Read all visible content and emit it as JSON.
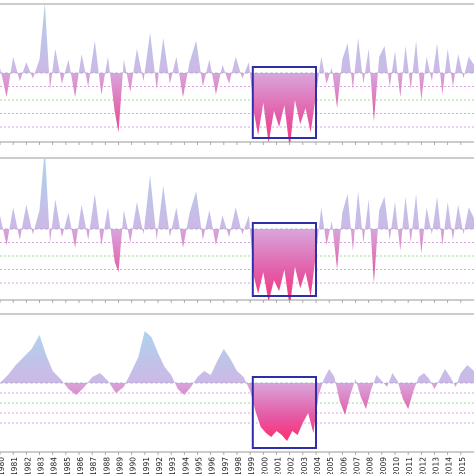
{
  "chart_data": [
    {
      "type": "area",
      "title": "",
      "xlabel": "",
      "ylabel": "",
      "x_range": [
        1980,
        2016
      ],
      "ylim": [
        -3,
        3
      ],
      "zero_line_color": "#9aa6cc",
      "threshold_lines": [
        {
          "value": -0.5,
          "color": "#c98ad8"
        },
        {
          "value": -1.0,
          "color": "#7fd46b"
        },
        {
          "value": -1.5,
          "color": "#d88ac8"
        },
        {
          "value": -2.0,
          "color": "#c98ad8"
        }
      ],
      "highlight_box": {
        "x": [
          1999.2,
          2004.0
        ],
        "color": "#2e2fa8"
      },
      "series": [
        {
          "x": [
            1980.0,
            1980.5,
            1981.0,
            1981.5,
            1982.0,
            1982.5,
            1983.0,
            1983.4,
            1983.8,
            1984.2,
            1984.7,
            1985.2,
            1985.7,
            1986.2,
            1986.7,
            1987.2,
            1987.7,
            1988.2,
            1988.7,
            1989.0,
            1989.4,
            1989.9,
            1990.4,
            1990.9,
            1991.4,
            1991.9,
            1992.4,
            1992.9,
            1993.4,
            1993.9,
            1994.4,
            1994.9,
            1995.4,
            1995.9,
            1996.4,
            1996.9,
            1997.4,
            1997.9,
            1998.4,
            1998.9,
            1999.3,
            1999.6,
            2000.0,
            2000.4,
            2000.8,
            2001.2,
            2001.6,
            2002.0,
            2002.4,
            2002.8,
            2003.2,
            2003.6,
            2004.0,
            2004.4,
            2004.8,
            2005.2,
            2005.6,
            2006.0,
            2006.4,
            2006.8,
            2007.2,
            2007.6,
            2008.0,
            2008.4,
            2008.8,
            2009.2,
            2009.6,
            2010.0,
            2010.4,
            2010.8,
            2011.2,
            2011.6,
            2012.0,
            2012.4,
            2012.8,
            2013.2,
            2013.6,
            2014.0,
            2014.4,
            2014.8,
            2015.2,
            2015.6,
            2016.0
          ],
          "y": [
            0.2,
            -0.9,
            0.6,
            -0.3,
            0.4,
            -0.2,
            0.5,
            2.6,
            -0.6,
            0.9,
            -0.4,
            0.5,
            -0.9,
            0.7,
            -0.5,
            1.2,
            -0.8,
            0.6,
            -1.4,
            -2.2,
            0.5,
            -0.7,
            0.9,
            -0.3,
            1.5,
            -0.6,
            1.3,
            -0.4,
            0.6,
            -0.9,
            0.4,
            1.2,
            -0.5,
            0.5,
            -0.8,
            0.3,
            -0.4,
            0.6,
            -0.2,
            0.4,
            -1.5,
            -2.3,
            -1.1,
            -2.6,
            -1.4,
            -2.0,
            -1.2,
            -2.8,
            -1.0,
            -1.9,
            -1.3,
            -2.2,
            -0.8,
            0.6,
            -0.4,
            0.2,
            -1.3,
            0.5,
            1.1,
            -0.6,
            1.3,
            -0.4,
            0.9,
            -1.8,
            0.6,
            1.0,
            -0.5,
            0.8,
            -0.9,
            1.0,
            -0.6,
            1.2,
            -1.0,
            0.6,
            -0.3,
            1.1,
            -0.8,
            0.9,
            -0.5,
            0.7,
            -0.2,
            0.6,
            0.3
          ]
        }
      ]
    },
    {
      "type": "area",
      "title": "",
      "xlabel": "",
      "ylabel": "",
      "x_range": [
        1980,
        2016
      ],
      "ylim": [
        -3,
        3
      ],
      "zero_line_color": "#9aa6cc",
      "threshold_lines": [
        {
          "value": -0.5,
          "color": "#c98ad8"
        },
        {
          "value": -1.0,
          "color": "#7fd46b"
        },
        {
          "value": -1.5,
          "color": "#d88ac8"
        },
        {
          "value": -2.0,
          "color": "#c98ad8"
        }
      ],
      "highlight_box": {
        "x": [
          1999.2,
          2004.0
        ],
        "color": "#2e2fa8"
      },
      "series": [
        {
          "x": [
            1980.0,
            1980.5,
            1981.0,
            1981.5,
            1982.0,
            1982.5,
            1983.0,
            1983.4,
            1983.8,
            1984.2,
            1984.7,
            1985.2,
            1985.7,
            1986.2,
            1986.7,
            1987.2,
            1987.7,
            1988.2,
            1988.7,
            1989.0,
            1989.4,
            1989.9,
            1990.4,
            1990.9,
            1991.4,
            1991.9,
            1992.4,
            1992.9,
            1993.4,
            1993.9,
            1994.4,
            1994.9,
            1995.4,
            1995.9,
            1996.4,
            1996.9,
            1997.4,
            1997.9,
            1998.4,
            1998.9,
            1999.3,
            1999.6,
            2000.0,
            2000.4,
            2000.8,
            2001.2,
            2001.6,
            2002.0,
            2002.4,
            2002.8,
            2003.2,
            2003.6,
            2004.0,
            2004.4,
            2004.8,
            2005.2,
            2005.6,
            2006.0,
            2006.4,
            2006.8,
            2007.2,
            2007.6,
            2008.0,
            2008.4,
            2008.8,
            2009.2,
            2009.6,
            2010.0,
            2010.4,
            2010.8,
            2011.2,
            2011.6,
            2012.0,
            2012.4,
            2012.8,
            2013.2,
            2013.6,
            2014.0,
            2014.4,
            2014.8,
            2015.2,
            2015.6,
            2016.0
          ],
          "y": [
            0.5,
            -0.6,
            0.8,
            -0.4,
            0.9,
            -0.2,
            0.7,
            3.0,
            -0.5,
            1.1,
            -0.3,
            0.6,
            -0.7,
            0.9,
            -0.4,
            1.3,
            -0.6,
            0.8,
            -1.2,
            -1.6,
            0.7,
            -0.5,
            1.0,
            -0.2,
            2.0,
            -0.4,
            1.6,
            -0.3,
            0.8,
            -0.7,
            0.6,
            1.4,
            -0.4,
            0.7,
            -0.6,
            0.5,
            -0.3,
            0.8,
            -0.2,
            0.5,
            -1.8,
            -2.4,
            -1.6,
            -2.7,
            -1.9,
            -2.3,
            -1.5,
            -2.9,
            -1.4,
            -2.2,
            -1.6,
            -2.5,
            -0.9,
            0.8,
            -0.6,
            0.3,
            -1.5,
            0.6,
            1.3,
            -0.8,
            1.4,
            -0.5,
            1.1,
            -2.0,
            0.7,
            1.2,
            -0.4,
            1.0,
            -0.8,
            1.2,
            -0.5,
            1.3,
            -0.9,
            0.8,
            -0.2,
            1.2,
            -0.6,
            1.0,
            -0.4,
            0.9,
            -0.2,
            0.8,
            0.4
          ]
        }
      ]
    },
    {
      "type": "area",
      "title": "",
      "xlabel": "",
      "ylabel": "",
      "x_range": [
        1980,
        2016
      ],
      "ylim": [
        -3,
        3
      ],
      "zero_line_color": "#9aa6cc",
      "threshold_lines": [
        {
          "value": -0.5,
          "color": "#c98ad8"
        },
        {
          "value": -1.0,
          "color": "#7fd46b"
        },
        {
          "value": -1.5,
          "color": "#d88ac8"
        },
        {
          "value": -2.0,
          "color": "#c98ad8"
        }
      ],
      "highlight_box": {
        "x": [
          1999.2,
          2004.0
        ],
        "color": "#2e2fa8"
      },
      "series": [
        {
          "x": [
            1980.0,
            1980.6,
            1981.2,
            1981.8,
            1982.4,
            1983.0,
            1983.5,
            1984.0,
            1984.6,
            1985.2,
            1985.8,
            1986.4,
            1987.0,
            1987.6,
            1988.2,
            1988.8,
            1989.4,
            1990.0,
            1990.5,
            1991.0,
            1991.5,
            1992.0,
            1992.5,
            1993.0,
            1993.5,
            1994.0,
            1994.5,
            1995.0,
            1995.5,
            1996.0,
            1996.5,
            1997.0,
            1997.5,
            1998.0,
            1998.5,
            1999.0,
            1999.4,
            1999.8,
            2000.2,
            2000.6,
            2001.0,
            2001.4,
            2001.8,
            2002.2,
            2002.6,
            2003.0,
            2003.4,
            2003.8,
            2004.2,
            2004.6,
            2005.0,
            2005.4,
            2005.8,
            2006.2,
            2006.6,
            2007.0,
            2007.4,
            2007.8,
            2008.2,
            2008.6,
            2009.0,
            2009.4,
            2009.8,
            2010.2,
            2010.6,
            2011.0,
            2011.4,
            2011.8,
            2012.2,
            2012.6,
            2013.0,
            2013.4,
            2013.8,
            2014.2,
            2014.6,
            2015.0,
            2015.5,
            2016.0
          ],
          "y": [
            0.0,
            0.4,
            0.9,
            1.3,
            1.7,
            2.4,
            1.4,
            0.6,
            0.2,
            -0.3,
            -0.6,
            -0.2,
            0.3,
            0.5,
            0.1,
            -0.5,
            -0.2,
            0.6,
            1.3,
            2.6,
            2.3,
            1.5,
            0.8,
            0.4,
            -0.3,
            -0.6,
            -0.2,
            0.3,
            0.6,
            0.4,
            1.1,
            1.7,
            1.2,
            0.6,
            0.3,
            -0.4,
            -1.4,
            -2.2,
            -2.5,
            -2.7,
            -2.4,
            -2.6,
            -2.9,
            -2.4,
            -2.6,
            -2.0,
            -1.5,
            -2.5,
            -0.6,
            0.2,
            0.7,
            0.3,
            -0.9,
            -1.6,
            -0.6,
            0.2,
            -0.7,
            -1.3,
            -0.3,
            0.4,
            0.1,
            -0.2,
            0.5,
            0.1,
            -0.8,
            -1.3,
            -0.4,
            0.3,
            0.5,
            0.2,
            -0.3,
            0.2,
            0.7,
            0.3,
            -0.2,
            0.5,
            0.9,
            0.6
          ]
        }
      ]
    }
  ],
  "x_ticks": [
    "1980",
    "1981",
    "1982",
    "1983",
    "1984",
    "1985",
    "1986",
    "1987",
    "1988",
    "1989",
    "1990",
    "1991",
    "1992",
    "1993",
    "1994",
    "1995",
    "1996",
    "1997",
    "1998",
    "1999",
    "2000",
    "2001",
    "2002",
    "2003",
    "2004",
    "2005",
    "2006",
    "2007",
    "2008",
    "2009",
    "2010",
    "2011",
    "2012",
    "2013",
    "2014",
    "2015"
  ],
  "colors": {
    "positive_top": "#a9d7ee",
    "positive_base": "#cdb8e6",
    "negative_base": "#d8a6dc",
    "negative_deep": "#ff2a6a",
    "frame": "#9a9a9a",
    "tick_text": "#222222"
  }
}
